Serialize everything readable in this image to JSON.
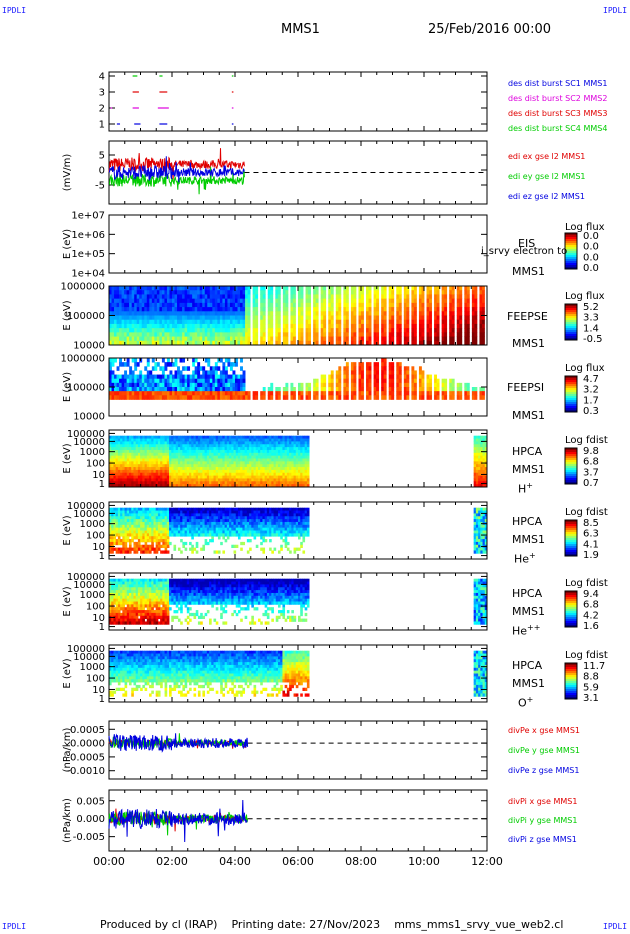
{
  "header": {
    "corner_label": "IPDLI",
    "spacecraft": "MMS1",
    "date": "25/Feb/2016 00:00"
  },
  "footer": {
    "produced_by": "Produced by cl (IRAP)",
    "printing_date": "Printing date: 27/Nov/2023",
    "script_name": "mms_mms1_srvy_vue_web2.cl"
  },
  "x_axis": {
    "tick_labels": [
      "00:00",
      "02:00",
      "04:00",
      "06:00",
      "08:00",
      "10:00",
      "12:00"
    ],
    "range_hours": [
      0,
      12
    ]
  },
  "panels": {
    "burst": {
      "ticks": [
        "4",
        "3",
        "2",
        "1"
      ],
      "legend": [
        "des dist burst SC1 MMS1",
        "des dist burst SC2 MMS2",
        "des dist burst SC3 MMS3",
        "des dist burst SC4 MMS4"
      ]
    },
    "edi": {
      "ylabel": "(mV/m)",
      "ticks": [
        "5",
        "0",
        "-5"
      ],
      "legend": [
        "edi ex gse l2 MMS1",
        "edi ey gse l2 MMS1",
        "edi ez gse l2 MMS1"
      ]
    },
    "eis": {
      "ylabel": "E (eV)",
      "ticks": [
        "1e+07",
        "1e+06",
        "1e+05",
        "1e+04"
      ],
      "name": "EIS",
      "extra": "i_srvy electron to",
      "sc": "MMS1",
      "cb_title": "Log flux",
      "cb_values": [
        "0.0",
        "0.0",
        "0.0",
        "0.0"
      ]
    },
    "feepse": {
      "ylabel": "E (eV)",
      "ticks": [
        "1000000",
        "100000",
        "10000"
      ],
      "name": "FEEPSE",
      "sc": "MMS1",
      "cb_title": "Log flux",
      "cb_values": [
        "5.2",
        "3.3",
        "1.4",
        "-0.5"
      ]
    },
    "feepsi": {
      "ylabel": "E (eV)",
      "ticks": [
        "1000000",
        "100000",
        "10000"
      ],
      "name": "FEEPSI",
      "sc": "MMS1",
      "cb_title": "Log flux",
      "cb_values": [
        "4.7",
        "3.2",
        "1.7",
        "0.3"
      ]
    },
    "hpca_h": {
      "ylabel": "E (eV)",
      "ticks": [
        "100000",
        "10000",
        "1000",
        "100",
        "10",
        "1"
      ],
      "name": "HPCA",
      "sc": "MMS1",
      "species": "H",
      "charge": "+",
      "cb_title": "Log fdist",
      "cb_values": [
        "9.8",
        "6.8",
        "3.7",
        "0.7"
      ]
    },
    "hpca_he": {
      "ylabel": "E (eV)",
      "ticks": [
        "100000",
        "10000",
        "1000",
        "100",
        "10",
        "1"
      ],
      "name": "HPCA",
      "sc": "MMS1",
      "species": "He",
      "charge": "+",
      "cb_title": "Log fdist",
      "cb_values": [
        "8.5",
        "6.3",
        "4.1",
        "1.9"
      ]
    },
    "hpca_hepp": {
      "ylabel": "E (eV)",
      "ticks": [
        "100000",
        "10000",
        "1000",
        "100",
        "10",
        "1"
      ],
      "name": "HPCA",
      "sc": "MMS1",
      "species": "He",
      "charge": "++",
      "cb_title": "Log fdist",
      "cb_values": [
        "9.4",
        "6.8",
        "4.2",
        "1.6"
      ]
    },
    "hpca_o": {
      "ylabel": "E (eV)",
      "ticks": [
        "100000",
        "10000",
        "1000",
        "100",
        "10",
        "1"
      ],
      "name": "HPCA",
      "sc": "MMS1",
      "species": "O",
      "charge": "+",
      "cb_title": "Log fdist",
      "cb_values": [
        "11.7",
        "8.8",
        "5.9",
        "3.1"
      ]
    },
    "divpe": {
      "ylabel": "(nPa/km)",
      "ticks": [
        "0.0005",
        "0.0000",
        "-0.0005",
        "-0.0010"
      ],
      "legend": [
        "divPe x gse MMS1",
        "divPe y gse MMS1",
        "divPe z gse MMS1"
      ]
    },
    "divpi": {
      "ylabel": "(nPa/km)",
      "ticks": [
        "0.005",
        "0.000",
        "-0.005"
      ],
      "legend": [
        "divPi x gse MMS1",
        "divPi y gse MMS1",
        "divPi z gse MMS1"
      ]
    }
  },
  "colors": {
    "red": "#e00000",
    "green": "#00cc00",
    "blue": "#0000e0",
    "magenta": "#dd00dd",
    "corner_blue": "#1a1aff"
  },
  "chart_data": [
    {
      "type": "scatter",
      "title": "des dist burst",
      "x_range_hours": [
        0,
        12
      ],
      "ylim": [
        0.5,
        4.5
      ],
      "series": [
        {
          "name": "des dist burst SC1 MMS1",
          "segments_hours": [
            [
              0.25,
              0.35
            ],
            [
              0.8,
              1.0
            ],
            [
              1.6,
              1.85
            ],
            [
              3.9,
              3.95
            ]
          ]
        },
        {
          "name": "des dist burst SC2 MMS2",
          "segments_hours": [
            [
              0.05,
              0.1
            ],
            [
              0.75,
              0.95
            ],
            [
              1.55,
              1.9
            ],
            [
              3.9,
              3.95
            ]
          ]
        },
        {
          "name": "des dist burst SC3 MMS3",
          "segments_hours": [
            [
              0.75,
              0.95
            ],
            [
              1.6,
              1.85
            ],
            [
              3.9,
              3.95
            ]
          ]
        },
        {
          "name": "des dist burst SC4 MMS4",
          "segments_hours": [
            [
              0.75,
              0.9
            ],
            [
              1.6,
              1.7
            ],
            [
              3.9,
              3.95
            ]
          ]
        }
      ]
    },
    {
      "type": "line",
      "title": "EDI E-field",
      "ylabel": "(mV/m)",
      "ylim": [
        -8,
        8
      ],
      "data_extent_hours": [
        0,
        4.3
      ],
      "series": [
        {
          "name": "edi ex gse l2 MMS1",
          "color": "red",
          "level_mV_m": 2
        },
        {
          "name": "edi ey gse l2 MMS1",
          "color": "green",
          "level_mV_m": -2
        },
        {
          "name": "edi ez gse l2 MMS1",
          "color": "blue",
          "level_mV_m": 0
        }
      ]
    },
    {
      "type": "heatmap",
      "title": "EIS",
      "ylog": true,
      "ylim": [
        10000,
        10000000
      ],
      "cb_range": [
        0.0,
        0.0
      ]
    },
    {
      "type": "heatmap",
      "title": "FEEPSE",
      "ylog": true,
      "ylim": [
        10000,
        1000000
      ],
      "cb_range": [
        -0.5,
        5.2
      ],
      "data_extent_hours": [
        0,
        12
      ]
    },
    {
      "type": "heatmap",
      "title": "FEEPSI",
      "ylog": true,
      "ylim": [
        10000,
        1000000
      ],
      "cb_range": [
        0.3,
        4.7
      ],
      "data_extent_hours": [
        0,
        12
      ]
    },
    {
      "type": "heatmap",
      "title": "HPCA H+",
      "ylog": true,
      "ylim": [
        1,
        100000
      ],
      "cb_range": [
        0.7,
        9.8
      ],
      "data_extent_hours": [
        [
          0,
          6.35
        ],
        [
          11.55,
          12
        ]
      ]
    },
    {
      "type": "heatmap",
      "title": "HPCA He+",
      "ylog": true,
      "ylim": [
        1,
        100000
      ],
      "cb_range": [
        1.9,
        8.5
      ],
      "data_extent_hours": [
        [
          0,
          6.35
        ],
        [
          11.55,
          12
        ]
      ]
    },
    {
      "type": "heatmap",
      "title": "HPCA He++",
      "ylog": true,
      "ylim": [
        1,
        100000
      ],
      "cb_range": [
        1.6,
        9.4
      ],
      "data_extent_hours": [
        [
          0,
          6.35
        ],
        [
          11.55,
          12
        ]
      ]
    },
    {
      "type": "heatmap",
      "title": "HPCA O+",
      "ylog": true,
      "ylim": [
        1,
        100000
      ],
      "cb_range": [
        3.1,
        11.7
      ],
      "data_extent_hours": [
        [
          0,
          6.35
        ],
        [
          11.55,
          12
        ]
      ]
    },
    {
      "type": "line",
      "title": "divPe",
      "ylabel": "(nPa/km)",
      "ylim": [
        -0.0013,
        0.0008
      ],
      "data_extent_hours": [
        0,
        4.4
      ],
      "series": [
        {
          "name": "divPe x gse MMS1",
          "color": "red"
        },
        {
          "name": "divPe y gse MMS1",
          "color": "green"
        },
        {
          "name": "divPe z gse MMS1",
          "color": "blue"
        }
      ]
    },
    {
      "type": "line",
      "title": "divPi",
      "ylabel": "(nPa/km)",
      "ylim": [
        -0.009,
        0.008
      ],
      "data_extent_hours": [
        0,
        4.4
      ],
      "series": [
        {
          "name": "divPi x gse MMS1",
          "color": "red"
        },
        {
          "name": "divPi y gse MMS1",
          "color": "green"
        },
        {
          "name": "divPi z gse MMS1",
          "color": "blue"
        }
      ]
    }
  ]
}
